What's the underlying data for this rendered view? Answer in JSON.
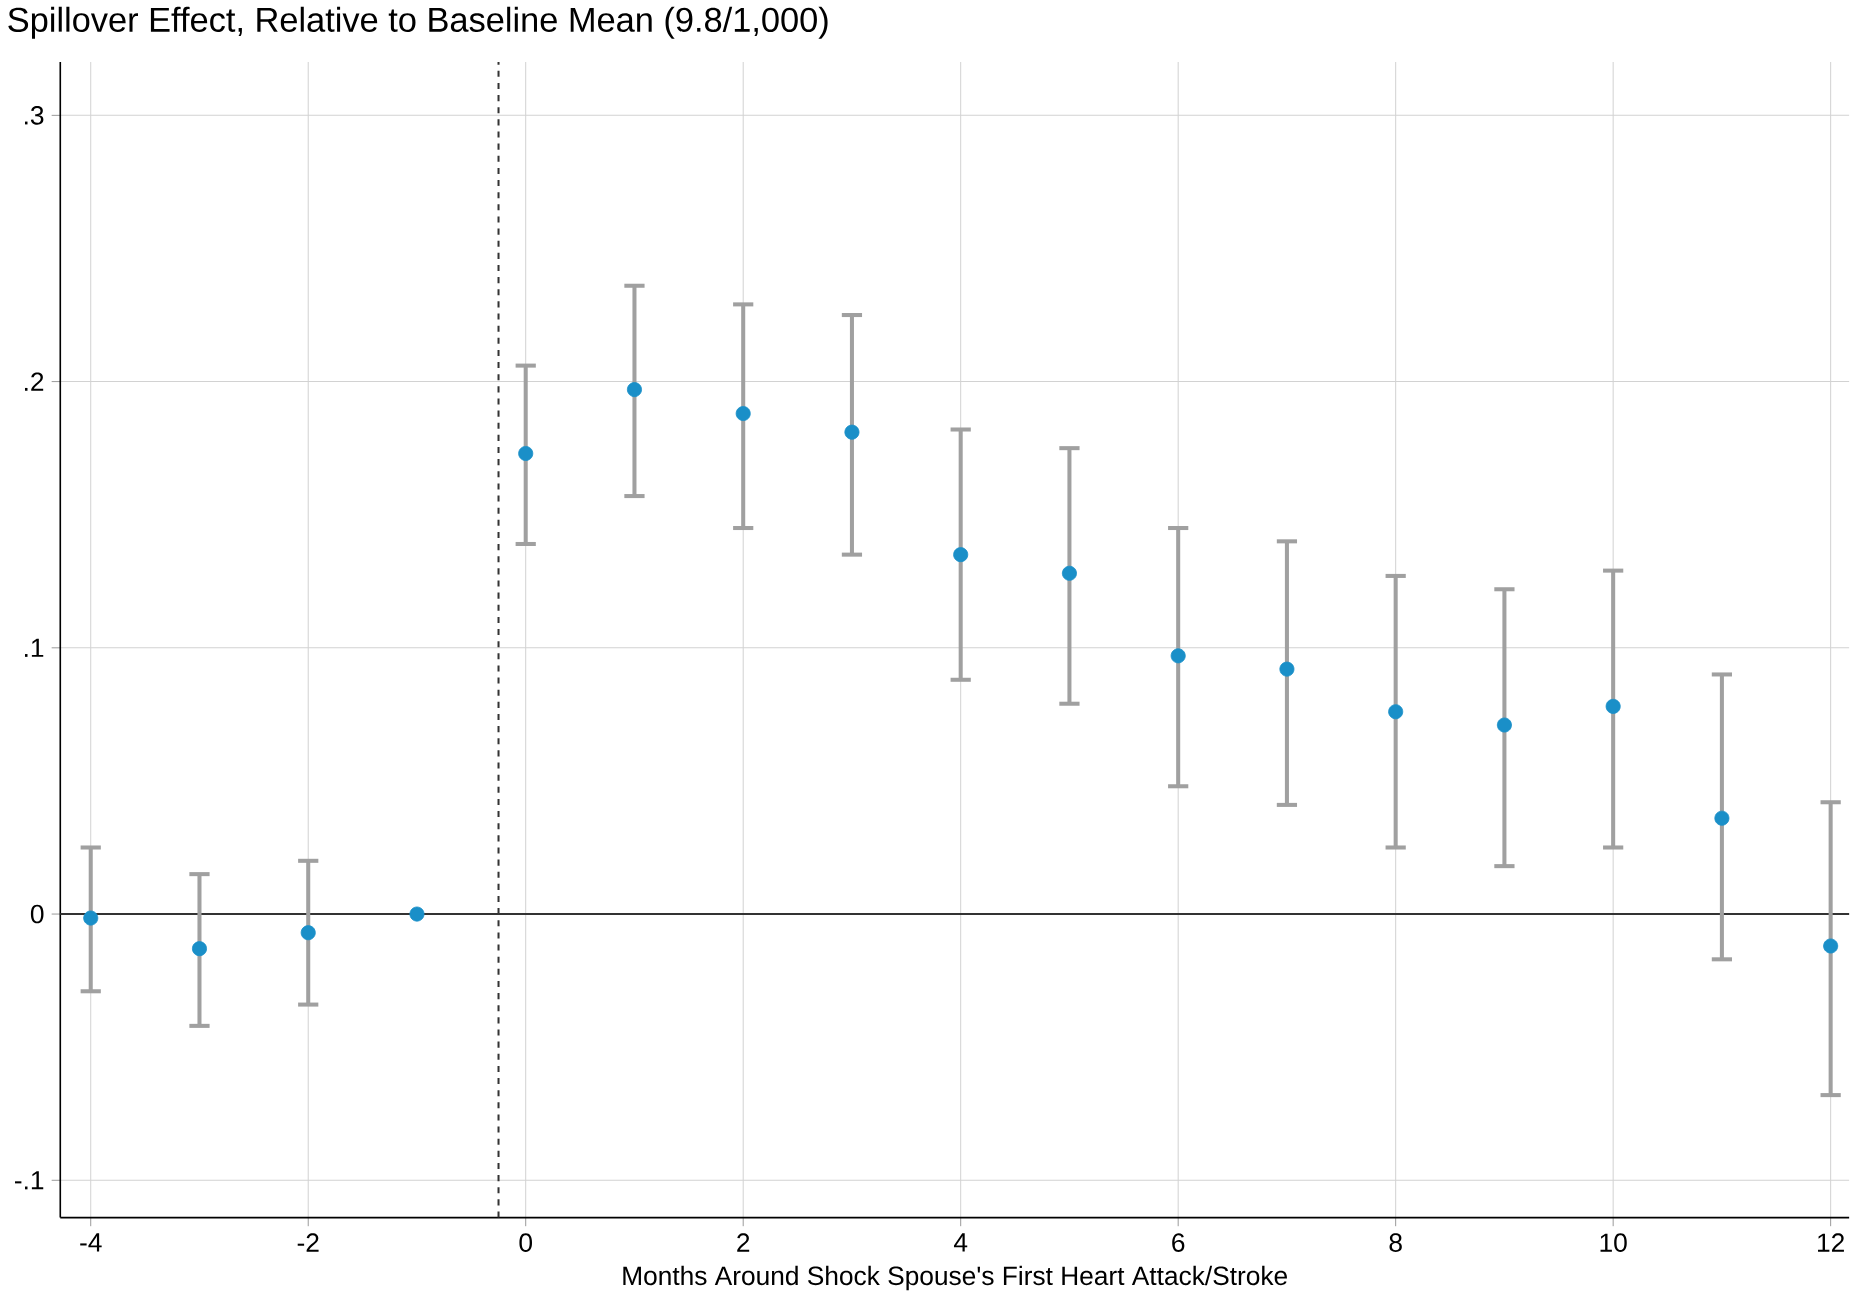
{
  "chart_data": {
    "type": "scatter",
    "title": "Spillover Effect, Relative to Baseline Mean (9.8/1,000)",
    "xlabel": "Months Around Shock Spouse's First Heart Attack/Stroke",
    "x": [
      -4,
      -3,
      -2,
      -1,
      0,
      1,
      2,
      3,
      4,
      5,
      6,
      7,
      8,
      9,
      10,
      11,
      12
    ],
    "series": [
      {
        "color": "#1a8fc8",
        "values": [
          -0.0015,
          -0.013,
          -0.007,
          0,
          0.173,
          0.197,
          0.188,
          0.181,
          0.135,
          0.128,
          0.097,
          0.092,
          0.076,
          0.071,
          0.078,
          0.036,
          -0.012
        ],
        "errors": [
          [
            -0.029,
            0.025
          ],
          [
            -0.042,
            0.015
          ],
          [
            -0.034,
            0.02
          ],
          null,
          [
            0.139,
            0.206
          ],
          [
            0.157,
            0.236
          ],
          [
            0.145,
            0.229
          ],
          [
            0.135,
            0.225
          ],
          [
            0.088,
            0.182
          ],
          [
            0.079,
            0.175
          ],
          [
            0.048,
            0.145
          ],
          [
            0.041,
            0.14
          ],
          [
            0.025,
            0.127
          ],
          [
            0.018,
            0.122
          ],
          [
            0.025,
            0.129
          ],
          [
            -0.017,
            0.09
          ],
          [
            -0.068,
            0.042
          ]
        ]
      }
    ],
    "xlim": [
      -4.28,
      12.17
    ],
    "ylim": [
      -0.114,
      0.32
    ],
    "xticks": [
      -4,
      -2,
      0,
      2,
      4,
      6,
      8,
      10,
      12
    ],
    "yticks": [
      {
        "value": -0.1,
        "label": "-.1"
      },
      0,
      {
        "value": 0.1,
        "label": ".1"
      },
      {
        "value": 0.2,
        "label": ".2"
      },
      {
        "value": 0.3,
        "label": ".3"
      }
    ],
    "ref_lines": [
      {
        "axis": "x",
        "value": -0.25,
        "line_style": "dashed",
        "color": "#333333"
      },
      {
        "axis": "y",
        "value": 0,
        "line_style": "solid",
        "color": "#333333"
      }
    ],
    "grid": true,
    "marker": "circle"
  }
}
